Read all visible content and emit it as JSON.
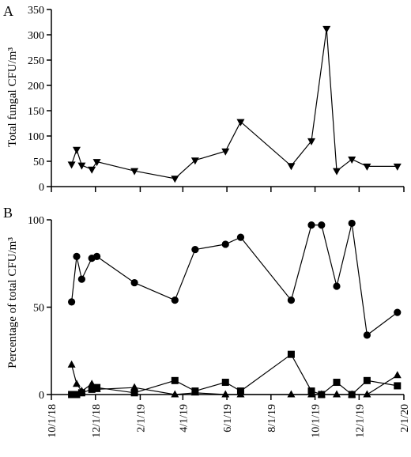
{
  "chart_data": [
    {
      "panel": "A",
      "type": "line",
      "ylabel": "Total fungal CFU/m³",
      "ylim": [
        0,
        350
      ],
      "yticks": [
        0,
        50,
        100,
        150,
        200,
        250,
        300,
        350
      ],
      "series": [
        {
          "marker": "triangle-down",
          "points": [
            [
              "2018-10-29",
              44
            ],
            [
              "2018-11-05",
              73
            ],
            [
              "2018-11-12",
              42
            ],
            [
              "2018-11-26",
              34
            ],
            [
              "2018-12-03",
              49
            ],
            [
              "2019-01-24",
              31
            ],
            [
              "2019-03-21",
              16
            ],
            [
              "2019-04-18",
              52
            ],
            [
              "2019-05-30",
              70
            ],
            [
              "2019-06-20",
              128
            ],
            [
              "2019-08-29",
              41
            ],
            [
              "2019-09-26",
              90
            ],
            [
              "2019-10-17",
              312
            ],
            [
              "2019-10-31",
              31
            ],
            [
              "2019-11-21",
              54
            ],
            [
              "2019-12-12",
              40
            ],
            [
              "2020-01-23",
              40
            ]
          ]
        }
      ]
    },
    {
      "panel": "B",
      "type": "line",
      "ylabel": "Percentage of total CFU/m³",
      "ylim": [
        0,
        100
      ],
      "yticks": [
        0,
        50,
        100
      ],
      "xlim": [
        "2018-10-01",
        "2020-02-01"
      ],
      "xticks": [
        "2018-10-01",
        "2018-12-01",
        "2019-02-01",
        "2019-04-01",
        "2019-06-01",
        "2019-08-01",
        "2019-10-01",
        "2019-12-01",
        "2020-02-01"
      ],
      "xticklabels": [
        "10/1/18",
        "12/1/18",
        "2/1/19",
        "4/1/19",
        "6/1/19",
        "8/1/19",
        "10/1/19",
        "12/1/19",
        "2/1/20"
      ],
      "series": [
        {
          "marker": "circle",
          "points": [
            [
              "2018-10-29",
              53
            ],
            [
              "2018-11-05",
              79
            ],
            [
              "2018-11-12",
              66
            ],
            [
              "2018-11-26",
              78
            ],
            [
              "2018-12-03",
              79
            ],
            [
              "2019-01-24",
              64
            ],
            [
              "2019-03-21",
              54
            ],
            [
              "2019-04-18",
              83
            ],
            [
              "2019-05-30",
              86
            ],
            [
              "2019-06-20",
              90
            ],
            [
              "2019-08-29",
              54
            ],
            [
              "2019-09-26",
              97
            ],
            [
              "2019-10-10",
              97
            ],
            [
              "2019-10-31",
              62
            ],
            [
              "2019-11-21",
              98
            ],
            [
              "2019-12-12",
              34
            ],
            [
              "2020-01-23",
              47
            ]
          ]
        },
        {
          "marker": "square",
          "points": [
            [
              "2018-10-29",
              0
            ],
            [
              "2018-11-05",
              0
            ],
            [
              "2018-11-12",
              1
            ],
            [
              "2018-11-26",
              3
            ],
            [
              "2018-12-03",
              4
            ],
            [
              "2019-01-24",
              1
            ],
            [
              "2019-03-21",
              8
            ],
            [
              "2019-04-18",
              2
            ],
            [
              "2019-05-30",
              7
            ],
            [
              "2019-06-20",
              2
            ],
            [
              "2019-08-29",
              23
            ],
            [
              "2019-09-26",
              2
            ],
            [
              "2019-10-10",
              0
            ],
            [
              "2019-10-31",
              7
            ],
            [
              "2019-11-21",
              0
            ],
            [
              "2019-12-12",
              8
            ],
            [
              "2020-01-23",
              5
            ]
          ]
        },
        {
          "marker": "triangle-up",
          "points": [
            [
              "2018-10-29",
              17
            ],
            [
              "2018-11-05",
              6
            ],
            [
              "2018-11-12",
              2
            ],
            [
              "2018-11-26",
              6
            ],
            [
              "2018-12-03",
              3
            ],
            [
              "2019-01-24",
              4
            ],
            [
              "2019-03-21",
              0
            ],
            [
              "2019-04-18",
              1
            ],
            [
              "2019-05-30",
              0
            ],
            [
              "2019-06-20",
              0
            ],
            [
              "2019-08-29",
              0
            ],
            [
              "2019-09-26",
              0
            ],
            [
              "2019-10-10",
              0
            ],
            [
              "2019-10-31",
              0
            ],
            [
              "2019-11-21",
              0
            ],
            [
              "2019-12-12",
              0
            ],
            [
              "2020-01-23",
              11
            ]
          ]
        }
      ]
    }
  ]
}
